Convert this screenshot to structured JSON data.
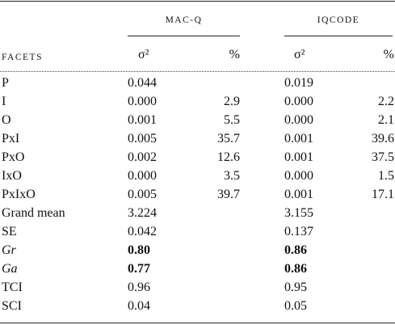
{
  "header": {
    "groups": [
      "MAC-Q",
      "IQCODE"
    ],
    "columns": [
      "FACETS",
      "σ²",
      "%",
      "σ²",
      "%"
    ]
  },
  "table": {
    "rows": [
      [
        "P",
        "0.044",
        null,
        "0.019",
        null
      ],
      [
        "I",
        "0.000",
        "2.9",
        "0.000",
        "2.2"
      ],
      [
        "O",
        "0.001",
        "5.5",
        "0.000",
        "2.1"
      ],
      [
        "PxI",
        "0.005",
        "35.7",
        "0.001",
        "39.6"
      ],
      [
        "PxO",
        "0.002",
        "12.6",
        "0.001",
        "37.5"
      ],
      [
        "IxO",
        "0.000",
        "3.5",
        "0.000",
        "1.5"
      ],
      [
        "PxIxO",
        "0.005",
        "39.7",
        "0.001",
        "17.1"
      ],
      [
        "Grand mean",
        "3.224",
        null,
        "3.155",
        null
      ],
      [
        "SE",
        "0.042",
        null,
        "0.137",
        null
      ],
      [
        "Gr",
        "0.80",
        null,
        "0.86",
        null
      ],
      [
        "Ga",
        "0.77",
        null,
        "0.86",
        null
      ],
      [
        "TCI",
        "0.96",
        null,
        "0.95",
        null
      ],
      [
        "SCI",
        "0.04",
        null,
        "0.05",
        null
      ]
    ]
  }
}
